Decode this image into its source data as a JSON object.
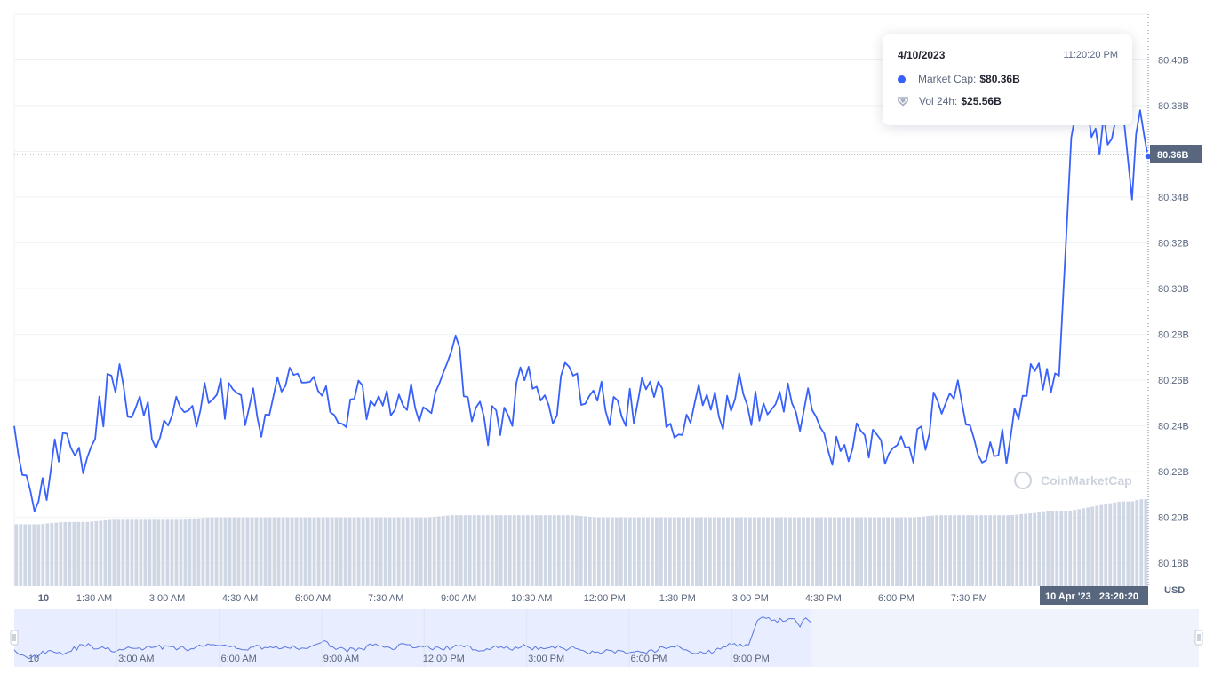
{
  "tooltip": {
    "date": "4/10/2023",
    "time": "11:20:20 PM",
    "market_cap_label": "Market Cap:",
    "market_cap_value": "$80.36B",
    "vol_label": "Vol 24h:",
    "vol_value": "$25.56B"
  },
  "crosshair": {
    "price_label": "80.36B",
    "time_label": "10 Apr '23   23:20:20"
  },
  "watermark": "CoinMarketCap",
  "currency": "USD",
  "colors": {
    "line": "#3861fb",
    "volume": "#cfd6e4",
    "navigator_fill": "#e8edff",
    "crosshair_label_bg": "#58667e"
  },
  "chart_data": {
    "type": "line",
    "title": "",
    "xlabel": "",
    "ylabel": "USD",
    "ylim": [
      80.17,
      80.42
    ],
    "y_ticks": [
      "80.18B",
      "80.20B",
      "80.22B",
      "80.24B",
      "80.26B",
      "80.28B",
      "80.30B",
      "80.32B",
      "80.34B",
      "80.36B",
      "80.38B",
      "80.40B"
    ],
    "x_ticks": [
      "10",
      "1:30 AM",
      "3:00 AM",
      "4:30 AM",
      "6:00 AM",
      "7:30 AM",
      "9:00 AM",
      "10:30 AM",
      "12:00 PM",
      "1:30 PM",
      "3:00 PM",
      "4:30 PM",
      "6:00 PM",
      "7:30 PM"
    ],
    "x": [
      "00:00",
      "00:30",
      "01:00",
      "01:30",
      "02:00",
      "02:30",
      "03:00",
      "03:30",
      "04:00",
      "04:30",
      "05:00",
      "05:30",
      "06:00",
      "06:30",
      "07:00",
      "07:30",
      "08:00",
      "08:30",
      "09:00",
      "09:30",
      "10:00",
      "10:30",
      "11:00",
      "11:30",
      "12:00",
      "12:30",
      "13:00",
      "13:30",
      "14:00",
      "14:30",
      "15:00",
      "15:30",
      "16:00",
      "16:30",
      "17:00",
      "17:30",
      "18:00",
      "18:30",
      "19:00",
      "19:30",
      "20:00",
      "20:30",
      "21:00",
      "21:15",
      "21:30",
      "21:45",
      "22:00",
      "22:15",
      "22:30",
      "22:45",
      "23:00",
      "23:10",
      "23:20"
    ],
    "series": [
      {
        "values": [
          80.24,
          80.207,
          80.237,
          80.226,
          80.262,
          80.248,
          80.235,
          80.246,
          80.25,
          80.256,
          80.244,
          80.255,
          80.259,
          80.246,
          80.252,
          80.253,
          80.249,
          80.247,
          80.273,
          80.248,
          80.236,
          80.26,
          80.249,
          80.262,
          80.251,
          80.244,
          80.256,
          80.241,
          80.25,
          80.244,
          80.254,
          80.245,
          80.25,
          80.244,
          80.229,
          80.236,
          80.228,
          80.224,
          80.251,
          80.25,
          80.225,
          80.235,
          80.264,
          80.265,
          80.262,
          80.366,
          80.376,
          80.37,
          80.363,
          80.375,
          80.339,
          80.378,
          80.357
        ]
      }
    ],
    "volume": [
      80.197,
      80.197,
      80.198,
      80.198,
      80.199,
      80.199,
      80.199,
      80.199,
      80.2,
      80.2,
      80.2,
      80.2,
      80.2,
      80.2,
      80.2,
      80.2,
      80.2,
      80.2,
      80.201,
      80.201,
      80.201,
      80.201,
      80.201,
      80.201,
      80.2,
      80.2,
      80.2,
      80.2,
      80.2,
      80.2,
      80.2,
      80.2,
      80.2,
      80.2,
      80.2,
      80.2,
      80.2,
      80.2,
      80.201,
      80.201,
      80.201,
      80.201,
      80.202,
      80.203,
      80.203,
      80.203,
      80.204,
      80.205,
      80.206,
      80.207,
      80.207,
      80.208,
      80.208
    ],
    "navigator_x_ticks": [
      "10",
      "3:00 AM",
      "6:00 AM",
      "9:00 AM",
      "12:00 PM",
      "3:00 PM",
      "6:00 PM",
      "9:00 PM"
    ],
    "grid": true,
    "legend": "none"
  }
}
